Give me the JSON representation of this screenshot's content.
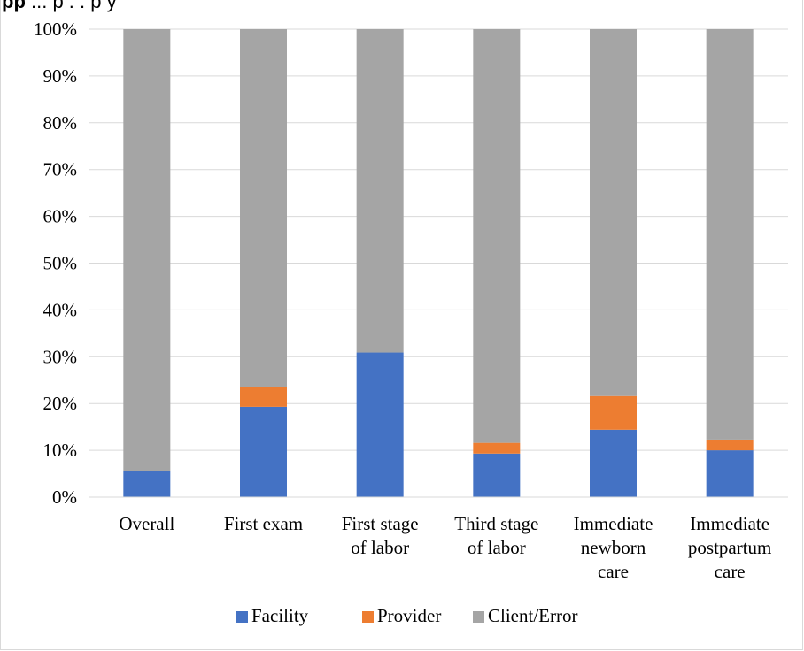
{
  "caption": {
    "bold": "pp",
    "text": "   ...  p           .        .  p    y"
  },
  "chart_data": {
    "type": "bar",
    "stacked": true,
    "categories": [
      [
        "Overall"
      ],
      [
        "First exam"
      ],
      [
        "First stage",
        "of labor"
      ],
      [
        "Third stage",
        "of labor"
      ],
      [
        "Immediate",
        "newborn",
        "care"
      ],
      [
        "Immediate",
        "postpartum",
        "care"
      ]
    ],
    "series": [
      {
        "name": "Facility",
        "color": "#4472c4",
        "values": [
          5.5,
          19.3,
          30.9,
          9.3,
          14.4,
          10.0
        ]
      },
      {
        "name": "Provider",
        "color": "#ed7d31",
        "values": [
          0,
          4.2,
          0,
          2.3,
          7.2,
          2.3
        ]
      },
      {
        "name": "Client/Error",
        "color": "#a5a5a5",
        "values": [
          94.5,
          76.5,
          69.1,
          88.4,
          78.4,
          87.7
        ]
      }
    ],
    "ylim": [
      0,
      100
    ],
    "yticks": [
      "0%",
      "10%",
      "20%",
      "30%",
      "40%",
      "50%",
      "60%",
      "70%",
      "80%",
      "90%",
      "100%"
    ],
    "grid": true,
    "legend_position": "bottom"
  }
}
